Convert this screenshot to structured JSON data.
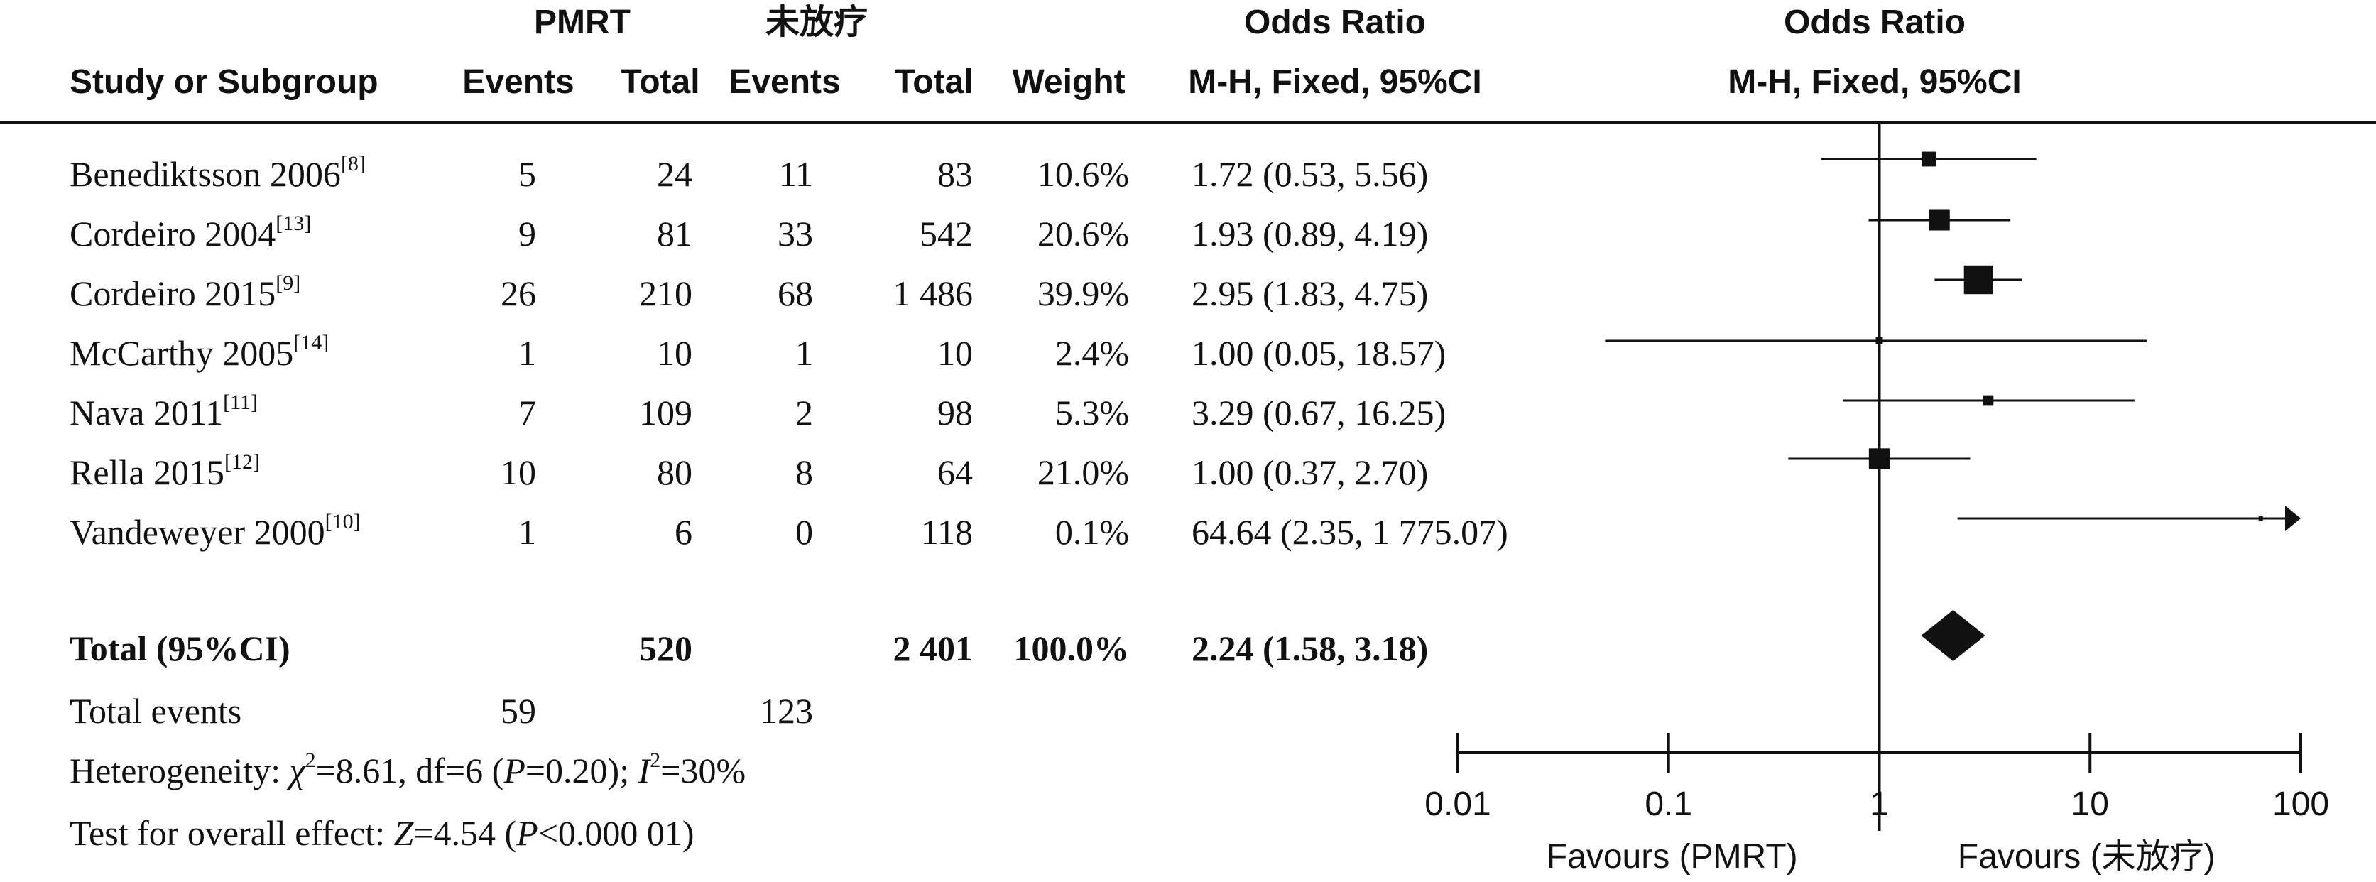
{
  "headers": {
    "group1": "PMRT",
    "group2": "未放疗",
    "study": "Study or Subgroup",
    "events1": "Events",
    "total1": "Total",
    "events2": "Events",
    "total2": "Total",
    "weight": "Weight",
    "or_text": "Odds Ratio",
    "or_text_method": "M-H, Fixed, 95%CI",
    "or_plot": "Odds Ratio",
    "or_plot_method": "M-H, Fixed, 95%CI"
  },
  "rows": [
    {
      "study": "Benediktsson 2006",
      "ref": "[8]",
      "e1": "5",
      "t1": "24",
      "e2": "11",
      "t2": "83",
      "weight": "10.6%",
      "ci": "1.72 (0.53, 5.56)"
    },
    {
      "study": "Cordeiro 2004",
      "ref": "[13]",
      "e1": "9",
      "t1": "81",
      "e2": "33",
      "t2": "542",
      "weight": "20.6%",
      "ci": "1.93 (0.89, 4.19)"
    },
    {
      "study": "Cordeiro 2015",
      "ref": "[9]",
      "e1": "26",
      "t1": "210",
      "e2": "68",
      "t2": "1 486",
      "weight": "39.9%",
      "ci": "2.95 (1.83, 4.75)"
    },
    {
      "study": "McCarthy 2005",
      "ref": "[14]",
      "e1": "1",
      "t1": "10",
      "e2": "1",
      "t2": "10",
      "weight": "2.4%",
      "ci": "1.00 (0.05, 18.57)"
    },
    {
      "study": "Nava 2011",
      "ref": "[11]",
      "e1": "7",
      "t1": "109",
      "e2": "2",
      "t2": "98",
      "weight": "5.3%",
      "ci": "3.29 (0.67, 16.25)"
    },
    {
      "study": "Rella 2015",
      "ref": "[12]",
      "e1": "10",
      "t1": "80",
      "e2": "8",
      "t2": "64",
      "weight": "21.0%",
      "ci": "1.00 (0.37, 2.70)"
    },
    {
      "study": "Vandeweyer 2000",
      "ref": "[10]",
      "e1": "1",
      "t1": "6",
      "e2": "0",
      "t2": "118",
      "weight": "0.1%",
      "ci": "64.64 (2.35, 1 775.07)"
    }
  ],
  "total": {
    "label": "Total (95%CI)",
    "t1": "520",
    "t2": "2 401",
    "weight": "100.0%",
    "ci": "2.24 (1.58, 3.18)"
  },
  "total_events": {
    "label": "Total events",
    "e1": "59",
    "e2": "123"
  },
  "heterogeneity": {
    "prefix": "Heterogeneity: ",
    "chi_sym": "χ",
    "chi_exp": "2",
    "chi_val": "=8.61, df=6 (",
    "p_sym": "P",
    "p_val": "=0.20); ",
    "i_sym": "I",
    "i_exp": "2",
    "i_val": "=30%"
  },
  "overall_effect": {
    "prefix": "Test for overall effect: ",
    "z_sym": "Z",
    "z_val": "=4.54 (",
    "p_sym": "P",
    "p_val": "<0.000 01)"
  },
  "chart_data": {
    "type": "forest",
    "scale": "log",
    "xlim": [
      0.01,
      100
    ],
    "x_ticks": [
      "0.01",
      "0.1",
      "1",
      "10",
      "100"
    ],
    "reference_line": 1,
    "favours_left": "Favours (PMRT)",
    "favours_right": "Favours (未放疗)",
    "studies": [
      {
        "or": 1.72,
        "lower": 0.53,
        "upper": 5.56,
        "weight": 10.6
      },
      {
        "or": 1.93,
        "lower": 0.89,
        "upper": 4.19,
        "weight": 20.6
      },
      {
        "or": 2.95,
        "lower": 1.83,
        "upper": 4.75,
        "weight": 39.9
      },
      {
        "or": 1.0,
        "lower": 0.05,
        "upper": 18.57,
        "weight": 2.4
      },
      {
        "or": 3.29,
        "lower": 0.67,
        "upper": 16.25,
        "weight": 5.3
      },
      {
        "or": 1.0,
        "lower": 0.37,
        "upper": 2.7,
        "weight": 21.0
      },
      {
        "or": 64.64,
        "lower": 2.35,
        "upper": 1775.07,
        "weight": 0.1
      }
    ],
    "pooled": {
      "or": 2.24,
      "lower": 1.58,
      "upper": 3.18
    }
  }
}
